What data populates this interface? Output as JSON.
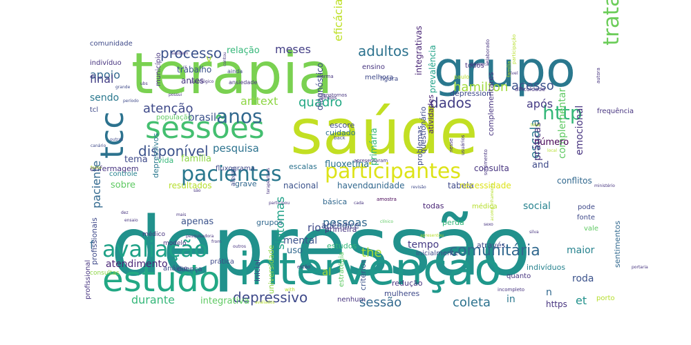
{
  "words": [
    {
      "text": "depressão",
      "color": "#21918c"
    },
    {
      "text": "saúde",
      "color": "#c2df23"
    },
    {
      "text": "terapia",
      "color": "#7ad151"
    },
    {
      "text": "grupo",
      "color": "#2a788e"
    },
    {
      "text": "intervenção",
      "color": "#1f988b"
    },
    {
      "text": "estudo",
      "color": "#22a884"
    },
    {
      "text": "sessões",
      "color": "#44bf70"
    },
    {
      "text": "tcc",
      "color": "#2c728e"
    },
    {
      "text": "avaliação",
      "color": "#1fa187"
    },
    {
      "text": "pacientes",
      "color": "#2a788e"
    },
    {
      "text": "participantes",
      "color": "#dde318"
    },
    {
      "text": "tratamento",
      "color": "#6ccd5a"
    },
    {
      "text": "anos",
      "color": "#31688e"
    },
    {
      "text": "http",
      "color": "#35b779"
    },
    {
      "text": "comunitária",
      "color": "#31688e"
    },
    {
      "text": "disponível",
      "color": "#3b528b"
    },
    {
      "text": "depressivo",
      "color": "#3e4989"
    },
    {
      "text": "processo",
      "color": "#3b528b"
    },
    {
      "text": "dados",
      "color": "#433e85"
    },
    {
      "text": "atenção",
      "color": "#3e4989"
    },
    {
      "text": "sessão",
      "color": "#31688e"
    },
    {
      "text": "adultos",
      "color": "#2c728e"
    },
    {
      "text": "acesso",
      "color": "#3b528b"
    },
    {
      "text": "hamilton",
      "color": "#a0da39"
    },
    {
      "text": "quadro",
      "color": "#22a884"
    },
    {
      "text": "escala",
      "color": "#2a788e"
    },
    {
      "text": "coleta",
      "color": "#2c728e"
    },
    {
      "text": "durante",
      "color": "#35b779"
    },
    {
      "text": "meses",
      "color": "#433e85"
    },
    {
      "text": "eficácia",
      "color": "#bddf26"
    },
    {
      "text": "após",
      "color": "#443983"
    },
    {
      "text": "arttext",
      "color": "#8ed645"
    },
    {
      "text": "brasil",
      "color": "#3b528b"
    },
    {
      "text": "pesquisa",
      "color": "#2c728e"
    },
    {
      "text": "apoio",
      "color": "#31688e"
    },
    {
      "text": "the",
      "color": "#a5db36"
    },
    {
      "text": "atendimento",
      "color": "#482475"
    },
    {
      "text": "pessoas",
      "color": "#31688e"
    },
    {
      "text": "sintomas",
      "color": "#1fa187"
    },
    {
      "text": "et",
      "color": "#21918c"
    },
    {
      "text": "emocional",
      "color": "#46337f"
    },
    {
      "text": "complementar",
      "color": "#5ec962"
    },
    {
      "text": "social",
      "color": "#26828e"
    },
    {
      "text": "mental",
      "color": "#3b528b"
    },
    {
      "text": "tempo",
      "color": "#443983"
    },
    {
      "text": "maior",
      "color": "#26828e"
    },
    {
      "text": "paciente",
      "color": "#31688e"
    },
    {
      "text": "final",
      "color": "#433e85"
    },
    {
      "text": "relação",
      "color": "#35b779"
    },
    {
      "text": "sendo",
      "color": "#2a788e"
    },
    {
      "text": "família",
      "color": "#8ed645"
    },
    {
      "text": "v",
      "color": "#a5db36"
    },
    {
      "text": "fluoxetina",
      "color": "#2c728e"
    },
    {
      "text": "in",
      "color": "#2a788e"
    },
    {
      "text": "integrativa",
      "color": "#5ec962"
    },
    {
      "text": "número",
      "color": "#440154"
    },
    {
      "text": "and",
      "color": "#3e4989"
    },
    {
      "text": "práticas",
      "color": "#46337f"
    },
    {
      "text": "rio",
      "color": "#3e4989"
    },
    {
      "text": "apenas",
      "color": "#3b528b"
    },
    {
      "text": "uso",
      "color": "#31688e"
    },
    {
      "text": "al",
      "color": "#a5db36"
    },
    {
      "text": "f",
      "color": "#31688e"
    },
    {
      "text": "consulta",
      "color": "#46337f"
    },
    {
      "text": "tema",
      "color": "#3e4989"
    },
    {
      "text": "sobre",
      "color": "#5ec962"
    },
    {
      "text": "https",
      "color": "#46337f"
    },
    {
      "text": "roda",
      "color": "#3b528b"
    },
    {
      "text": "n",
      "color": "#31688e"
    },
    {
      "text": "trabalho",
      "color": "#3b528b"
    },
    {
      "text": "antes",
      "color": "#46337f"
    },
    {
      "text": "primária",
      "color": "#35b779"
    },
    {
      "text": "diagnóstico",
      "color": "#3e4989"
    },
    {
      "text": "integrativas",
      "color": "#482475"
    },
    {
      "text": "prevalência",
      "color": "#1fa187"
    },
    {
      "text": "atividades",
      "color": "#482475"
    },
    {
      "text": "unidade",
      "color": "#31688e"
    },
    {
      "text": "nacional",
      "color": "#3b528b"
    },
    {
      "text": "havendo",
      "color": "#31688e"
    },
    {
      "text": "tabela",
      "color": "#3e4989"
    },
    {
      "text": "necessidade",
      "color": "#dde318"
    },
    {
      "text": "resultados",
      "color": "#b5de2b"
    },
    {
      "text": "enfermagem",
      "color": "#46337f"
    },
    {
      "text": "depression",
      "color": "#3e4989"
    },
    {
      "text": "conflitos",
      "color": "#31688e"
    },
    {
      "text": "controle",
      "color": "#26828e"
    },
    {
      "text": "grave",
      "color": "#31688e"
    },
    {
      "text": "vida",
      "color": "#35b779"
    },
    {
      "text": "profissionais",
      "color": "#3e4989"
    },
    {
      "text": "depressivos",
      "color": "#2a788e"
    },
    {
      "text": "sentimentos",
      "color": "#31688e"
    },
    {
      "text": "indivíduos",
      "color": "#26828e"
    },
    {
      "text": "através",
      "color": "#3e4989"
    },
    {
      "text": "perda",
      "color": "#35b779"
    },
    {
      "text": "inicial",
      "color": "#3e4989"
    },
    {
      "text": "estudos",
      "color": "#35b779"
    },
    {
      "text": "universidade",
      "color": "#8ed645"
    },
    {
      "text": "escalas",
      "color": "#2c728e"
    },
    {
      "text": "escore",
      "color": "#3e4989"
    },
    {
      "text": "apêndice",
      "color": "#3e4989"
    },
    {
      "text": "primeira",
      "color": "#46337f"
    },
    {
      "text": "grupos",
      "color": "#31688e"
    },
    {
      "text": "básica",
      "color": "#31688e"
    },
    {
      "text": "todas",
      "color": "#482475"
    },
    {
      "text": "cuidado",
      "color": "#2c728e"
    },
    {
      "text": "questionário",
      "color": "#3e4989"
    },
    {
      "text": "complementares",
      "color": "#46337f"
    },
    {
      "text": "problemas",
      "color": "#3e4989"
    },
    {
      "text": "critérios",
      "color": "#3b528b"
    },
    {
      "text": "redução",
      "color": "#46337f"
    },
    {
      "text": "mulheres",
      "color": "#3e4989"
    },
    {
      "text": "comunidade",
      "color": "#3e4989"
    },
    {
      "text": "indivíduo",
      "color": "#46337f"
    },
    {
      "text": "população",
      "color": "#5ec962"
    },
    {
      "text": "município",
      "color": "#46337f"
    },
    {
      "text": "melhora",
      "color": "#3e4989"
    },
    {
      "text": "ensino",
      "color": "#46337f"
    },
    {
      "text": "todos",
      "color": "#46337f"
    },
    {
      "text": "modelo",
      "color": "#46337f"
    },
    {
      "text": "prática",
      "color": "#3e4989"
    },
    {
      "text": "doença",
      "color": "#3e4989"
    },
    {
      "text": "consultas",
      "color": "#8ed645"
    },
    {
      "text": "profissional",
      "color": "#46337f"
    },
    {
      "text": "pode",
      "color": "#3e4989"
    },
    {
      "text": "fonte",
      "color": "#3e4989"
    },
    {
      "text": "vale",
      "color": "#5ec962"
    },
    {
      "text": "porto",
      "color": "#b5de2b"
    },
    {
      "text": "quanto",
      "color": "#46337f"
    },
    {
      "text": "inicialmente",
      "color": "#3e4989"
    },
    {
      "text": "análise",
      "color": "#3e4989"
    },
    {
      "text": "estratégia",
      "color": "#5ec962"
    },
    {
      "text": "médico",
      "color": "#46337f"
    },
    {
      "text": "médica",
      "color": "#b5de2b"
    },
    {
      "text": "fluxograma",
      "color": "#3e4989"
    },
    {
      "text": "alegre",
      "color": "#3e4989"
    },
    {
      "text": "amostra",
      "color": "#440154"
    },
    {
      "text": "nenhum",
      "color": "#46337f"
    },
    {
      "text": "tcl",
      "color": "#3e4989"
    },
    {
      "text": "ainda",
      "color": "#3e4989"
    },
    {
      "text": "ansiedade",
      "color": "#46337f"
    },
    {
      "text": "dificuldade",
      "color": "#46337f"
    },
    {
      "text": "frequência",
      "color": "#46337f"
    },
    {
      "text": "figura",
      "color": "#3e4989"
    },
    {
      "text": "paulo",
      "color": "#b5de2b"
    },
    {
      "text": "elaborado",
      "color": "#46337f"
    },
    {
      "text": "autora",
      "color": "#46337f"
    },
    {
      "text": "transtornos",
      "color": "#46337f"
    },
    {
      "text": "forma",
      "color": "#46337f"
    },
    {
      "text": "ambos",
      "color": "#46337f"
    },
    {
      "text": "nesse",
      "color": "#46337f"
    },
    {
      "text": "usuários",
      "color": "#46337f"
    },
    {
      "text": "apresentaram",
      "color": "#46337f"
    },
    {
      "text": "sofrimento",
      "color": "#46337f"
    },
    {
      "text": "ministério",
      "color": "#46337f"
    },
    {
      "text": "incompleto",
      "color": "#46337f"
    },
    {
      "text": "avaliados",
      "color": "#b5de2b"
    },
    {
      "text": "with",
      "color": "#b5de2b"
    },
    {
      "text": "back",
      "color": "#3e4989"
    },
    {
      "text": "estão",
      "color": "#46337f"
    },
    {
      "text": "período",
      "color": "#3e4989"
    },
    {
      "text": "grande",
      "color": "#3e4989"
    },
    {
      "text": "canário",
      "color": "#3e4989"
    },
    {
      "text": "outras",
      "color": "#3e4989"
    },
    {
      "text": "total",
      "color": "#b5de2b"
    },
    {
      "text": "local",
      "color": "#b5de2b"
    },
    {
      "text": "saúdem",
      "color": "#46337f"
    },
    {
      "text": "portaria",
      "color": "#46337f"
    },
    {
      "text": "clínico",
      "color": "#5ec962"
    },
    {
      "text": "apresentou",
      "color": "#b5de2b"
    },
    {
      "text": "dez",
      "color": "#46337f"
    },
    {
      "text": "revisão",
      "color": "#3e4989"
    },
    {
      "text": "sexo",
      "color": "#46337f"
    },
    {
      "text": "são",
      "color": "#46337f"
    },
    {
      "text": "cada",
      "color": "#46337f"
    },
    {
      "text": "fonte",
      "color": "#b5de2b"
    },
    {
      "text": "rs",
      "color": "#46337f"
    },
    {
      "text": "participação",
      "color": "#b5de2b"
    },
    {
      "text": "terapêuticas",
      "color": "#46337f"
    },
    {
      "text": "nível",
      "color": "#46337f"
    },
    {
      "text": "família",
      "color": "#b5de2b"
    },
    {
      "text": "dinâmica",
      "color": "#46337f"
    },
    {
      "text": "acompanhamento",
      "color": "#b5de2b"
    },
    {
      "text": "silva",
      "color": "#46337f"
    },
    {
      "text": "from",
      "color": "#46337f"
    },
    {
      "text": "pesquisadora",
      "color": "#46337f"
    },
    {
      "text": "participou",
      "color": "#46337f"
    },
    {
      "text": "outros",
      "color": "#46337f"
    },
    {
      "text": "ubs",
      "color": "#46337f"
    },
    {
      "text": "possui",
      "color": "#46337f"
    },
    {
      "text": "contou",
      "color": "#46337f"
    },
    {
      "text": "mais",
      "color": "#46337f"
    },
    {
      "text": "ensaio",
      "color": "#46337f"
    },
    {
      "text": "psicológico",
      "color": "#46337f"
    },
    {
      "text": "idade",
      "color": "#46337f"
    },
    {
      "text": "início",
      "color": "#46337f"
    },
    {
      "text": "menor",
      "color": "#46337f"
    },
    {
      "text": "social",
      "color": "#b5de2b"
    }
  ]
}
